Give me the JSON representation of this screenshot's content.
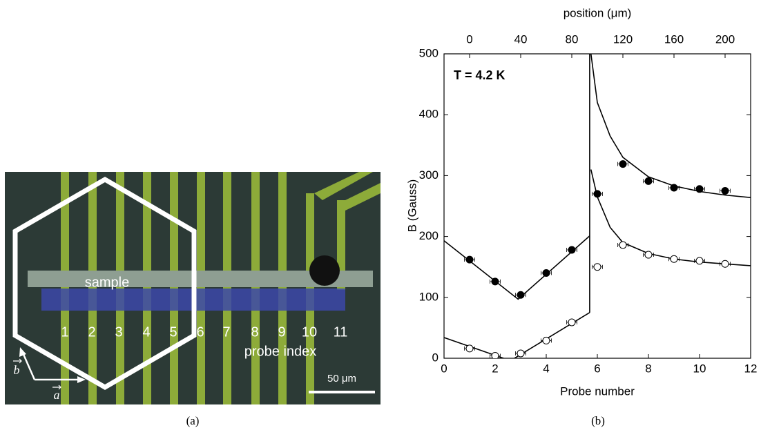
{
  "panel_a": {
    "sample_label": "sample",
    "probe_numbers": [
      "1",
      "2",
      "3",
      "4",
      "5",
      "6",
      "7",
      "8",
      "9",
      "10",
      "11"
    ],
    "probe_index_label": "probe index",
    "scale_bar_label": "50 μm",
    "vector_a": "a",
    "vector_b": "b",
    "caption": "(a)"
  },
  "chart_data": {
    "type": "scatter",
    "caption": "(b)",
    "xlabel": "Probe number",
    "ylabel": "B (Gauss)",
    "x2label": "position (μm)",
    "annotation": "T = 4.2 K",
    "xlim": [
      0,
      12
    ],
    "xticks": [
      0,
      2,
      4,
      6,
      8,
      10,
      12
    ],
    "ylim": [
      0,
      500
    ],
    "yticks": [
      0,
      100,
      200,
      300,
      400,
      500
    ],
    "x2lim": [
      -20,
      220
    ],
    "x2ticks": [
      0,
      40,
      80,
      120,
      160,
      200
    ],
    "series": [
      {
        "marker": "filled",
        "color": "#000000",
        "xerr": 0.2,
        "x": [
          1,
          2,
          3,
          4,
          5,
          6,
          7,
          8,
          9,
          10,
          11
        ],
        "values": [
          162,
          126,
          104,
          140,
          178,
          270,
          319,
          291,
          280,
          278,
          275
        ]
      },
      {
        "marker": "open",
        "color": "#000000",
        "xerr": 0.2,
        "x": [
          1,
          2,
          3,
          4,
          5,
          6,
          7,
          8,
          9,
          10,
          11
        ],
        "values": [
          16,
          4,
          8,
          29,
          59,
          150,
          186,
          170,
          163,
          160,
          155
        ]
      }
    ],
    "fits": [
      {
        "color": "#000000",
        "x": [
          0,
          2.9,
          5.7
        ],
        "values": [
          193,
          97,
          201
        ]
      },
      {
        "color": "#000000",
        "x": [
          0,
          2.6,
          5.7
        ],
        "values": [
          34,
          -4,
          75
        ]
      },
      {
        "color": "#000000",
        "x": [
          5.7,
          5.7
        ],
        "values": [
          75,
          500
        ]
      },
      {
        "color": "#000000",
        "x": [
          5.75,
          6,
          6.5,
          7,
          8,
          9,
          10,
          11,
          12
        ],
        "values": [
          500,
          420,
          365,
          330,
          298,
          283,
          274,
          268,
          264
        ]
      },
      {
        "color": "#000000",
        "x": [
          5.75,
          6,
          6.5,
          7,
          8,
          9,
          10,
          11,
          12
        ],
        "values": [
          310,
          265,
          215,
          190,
          172,
          163,
          158,
          155,
          152
        ]
      }
    ]
  }
}
